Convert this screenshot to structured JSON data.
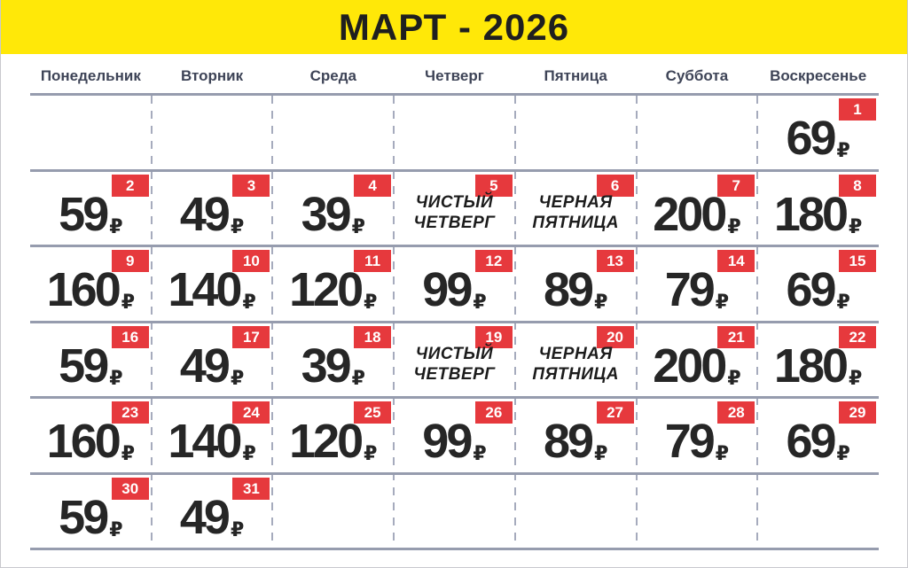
{
  "title": "МАРТ - 2026",
  "weekdays": [
    "Понедельник",
    "Вторник",
    "Среда",
    "Четверг",
    "Пятница",
    "Суббота",
    "Воскресенье"
  ],
  "currency": "₽",
  "colors": {
    "banner_yellow": "#ffe808",
    "badge_red": "#e6393d",
    "grid_line": "#969cae",
    "weekday_text": "#3e4457",
    "price_text": "#262626"
  },
  "weeks": [
    [
      null,
      null,
      null,
      null,
      null,
      null,
      {
        "day": 1,
        "price": "69"
      }
    ],
    [
      {
        "day": 2,
        "price": "59"
      },
      {
        "day": 3,
        "price": "49"
      },
      {
        "day": 4,
        "price": "39"
      },
      {
        "day": 5,
        "lines": [
          "ЧИСТЫЙ",
          "ЧЕТВЕРГ"
        ]
      },
      {
        "day": 6,
        "lines": [
          "ЧЕРНАЯ",
          "ПЯТНИЦА"
        ]
      },
      {
        "day": 7,
        "price": "200"
      },
      {
        "day": 8,
        "price": "180"
      }
    ],
    [
      {
        "day": 9,
        "price": "160"
      },
      {
        "day": 10,
        "price": "140"
      },
      {
        "day": 11,
        "price": "120"
      },
      {
        "day": 12,
        "price": "99"
      },
      {
        "day": 13,
        "price": "89"
      },
      {
        "day": 14,
        "price": "79"
      },
      {
        "day": 15,
        "price": "69"
      }
    ],
    [
      {
        "day": 16,
        "price": "59"
      },
      {
        "day": 17,
        "price": "49"
      },
      {
        "day": 18,
        "price": "39"
      },
      {
        "day": 19,
        "lines": [
          "ЧИСТЫЙ",
          "ЧЕТВЕРГ"
        ]
      },
      {
        "day": 20,
        "lines": [
          "ЧЕРНАЯ",
          "ПЯТНИЦА"
        ]
      },
      {
        "day": 21,
        "price": "200"
      },
      {
        "day": 22,
        "price": "180"
      }
    ],
    [
      {
        "day": 23,
        "price": "160"
      },
      {
        "day": 24,
        "price": "140"
      },
      {
        "day": 25,
        "price": "120"
      },
      {
        "day": 26,
        "price": "99"
      },
      {
        "day": 27,
        "price": "89"
      },
      {
        "day": 28,
        "price": "79"
      },
      {
        "day": 29,
        "price": "69"
      }
    ],
    [
      {
        "day": 30,
        "price": "59"
      },
      {
        "day": 31,
        "price": "49"
      },
      null,
      null,
      null,
      null,
      null
    ]
  ]
}
